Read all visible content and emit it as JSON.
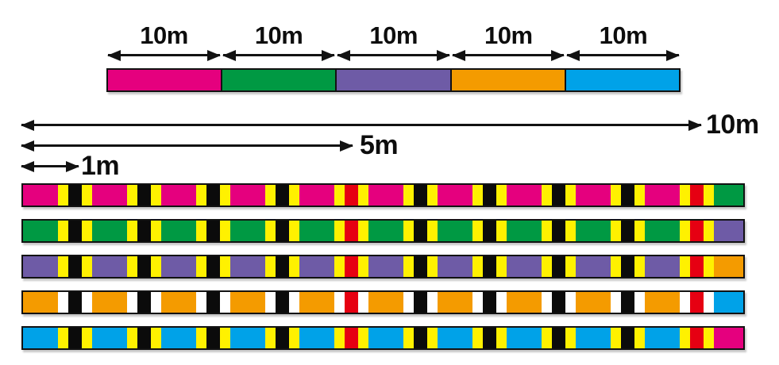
{
  "diagram": {
    "top_scale": {
      "segment_label": "10m",
      "segments": [
        {
          "name": "pink",
          "color": "#E5007E"
        },
        {
          "name": "green",
          "color": "#009943"
        },
        {
          "name": "purple",
          "color": "#6E5BA6"
        },
        {
          "name": "orange",
          "color": "#F49B00"
        },
        {
          "name": "blue",
          "color": "#00A2E8"
        }
      ]
    },
    "rulers": [
      {
        "label": "10m"
      },
      {
        "label": "5m"
      },
      {
        "label": "1m"
      }
    ],
    "mark": {
      "marks_per_meter_section": 10,
      "red_mark_positions_m": [
        5,
        10
      ],
      "black": "#0B0B0B",
      "red": "#E60012",
      "yellow": "#FFF100",
      "white": "#FFFFFF"
    },
    "marked_lines": [
      {
        "name": "pink",
        "base": "#E5007E",
        "edge": "#FFF100",
        "tail_color": "#009943"
      },
      {
        "name": "green",
        "base": "#009943",
        "edge": "#FFF100",
        "tail_color": "#6E5BA6"
      },
      {
        "name": "purple",
        "base": "#6E5BA6",
        "edge": "#FFF100",
        "tail_color": "#F49B00"
      },
      {
        "name": "orange",
        "base": "#F49B00",
        "edge": "#FFFFFF",
        "tail_color": "#00A2E8"
      },
      {
        "name": "blue",
        "base": "#00A2E8",
        "edge": "#FFF100",
        "tail_color": "#E5007E"
      }
    ]
  }
}
